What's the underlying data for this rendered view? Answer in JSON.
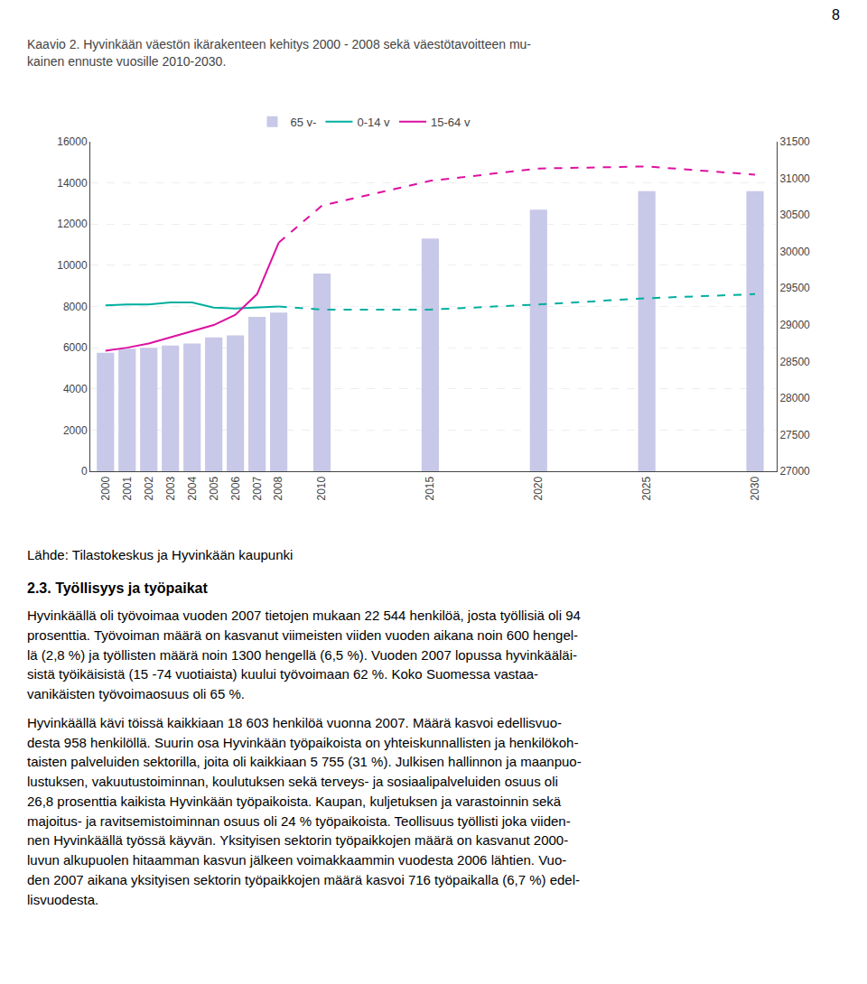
{
  "chart_data": {
    "type": "bar",
    "title": "Kaavio 2. Hyvinkään väestön ikärakenteen kehitys 2000 - 2008 sekä väestötavoitteen mu-\nkainen ennuste vuosille 2010-2030.",
    "series": [
      {
        "name": "65 v-",
        "type": "bar",
        "color": "#c8c8e8",
        "x": [
          2000,
          2001,
          2002,
          2003,
          2004,
          2005,
          2006,
          2007,
          2008,
          2010,
          2015,
          2020,
          2025,
          2030
        ],
        "values": [
          5750,
          5950,
          6000,
          6100,
          6200,
          6500,
          6600,
          7500,
          7700,
          9600,
          11300,
          12700,
          13600,
          13600
        ]
      },
      {
        "name": "0-14 v",
        "type": "line",
        "color": "#00afa0",
        "line_style": "solid",
        "x": [
          2000,
          2001,
          2002,
          2003,
          2004,
          2005,
          2006,
          2007,
          2008
        ],
        "values": [
          8050,
          8100,
          8100,
          8200,
          8200,
          7950,
          7900,
          7950,
          8000
        ]
      },
      {
        "name": "15-64 v",
        "type": "line",
        "color": "#dd10a0",
        "line_style": "solid",
        "x": [
          2000,
          2001,
          2002,
          2003,
          2004,
          2005,
          2006,
          2007,
          2008
        ],
        "values": [
          5850,
          6000,
          6200,
          6500,
          6800,
          7100,
          7600,
          8600,
          11100
        ]
      },
      {
        "name": "0-14 v",
        "type": "line",
        "color": "#00afa0",
        "line_style": "dashed",
        "x": [
          2008,
          2010,
          2015,
          2020,
          2025,
          2030
        ],
        "values": [
          8000,
          7850,
          7850,
          8100,
          8400,
          8600
        ]
      },
      {
        "name": "15-64 v",
        "type": "line",
        "color": "#dd10a0",
        "line_style": "dashed",
        "x": [
          2008,
          2010,
          2015,
          2020,
          2025,
          2030
        ],
        "values": [
          11100,
          12900,
          14100,
          14700,
          14800,
          14400
        ]
      }
    ],
    "xlim": [
      1999.3,
      2031.0
    ],
    "xticks": [
      2000,
      2001,
      2002,
      2003,
      2004,
      2005,
      2006,
      2007,
      2008,
      2010,
      2015,
      2020,
      2025,
      2030
    ],
    "ylim": [
      0,
      16000
    ],
    "yticks": [
      0,
      2000,
      4000,
      6000,
      8000,
      10000,
      12000,
      14000,
      16000
    ],
    "y2lim": [
      27000,
      31500
    ],
    "y2ticks": [
      27000,
      27500,
      28000,
      28500,
      29000,
      29500,
      30000,
      30500,
      31000,
      31500
    ],
    "grid": true,
    "legend": "top",
    "annotations": [
      "8",
      "Lähde: Tilastokeskus ja Hyvinkään kaupunki",
      "2.3. Työllisyys ja työpaikat",
      "Hyvinkäällä oli työvoimaa vuoden 2007 tietojen mukaan 22 544 henkilöä, josta työllisiä oli 94\nprosenttia. Työvoiman määrä on kasvanut viimeisten viiden vuoden aikana noin 600 hengel-\nlä (2,8 %) ja työllisten määrä noin 1300 hengellä (6,5 %). Vuoden 2007 lopussa hyvinkääläi-\nsistä työikäisistä (15 -74 vuotiaista) kuului työvoimaan 62 %.  Koko Suomessa vastaa-\nvanikäisten työvoimaosuus oli 65 %.",
      "Hyvinkäällä kävi töissä kaikkiaan 18 603 henkilöä vuonna 2007. Määrä kasvoi edellisvuo-\ndesta 958 henkilöllä. Suurin osa Hyvinkään työpaikoista on yhteiskunnallisten ja henkilökoh-\ntaisten palveluiden sektorilla, joita oli kaikkiaan 5 755 (31 %). Julkisen hallinnon ja maanpuo-\nlustuksen, vakuutustoiminnan, koulutuksen sekä terveys- ja sosiaalipalveluiden osuus oli\n26,8 prosenttia kaikista Hyvinkään työpaikoista. Kaupan, kuljetuksen ja varastoinnin sekä\nmajoitus- ja ravitsemistoiminnan osuus oli 24 % työpaikoista. Teollisuus työllisti joka viiden-\nnen Hyvinkäällä työssä käyvän. Yksityisen sektorin työpaikkojen määrä on kasvanut 2000-\nluvun alkupuolen hitaamman kasvun jälkeen voimakkaammin vuodesta 2006 lähtien. Vuo-\nden 2007 aikana yksityisen sektorin työpaikkojen määrä kasvoi 716 työpaikalla (6,7 %) edel-\nlisvuodesta."
    ]
  }
}
